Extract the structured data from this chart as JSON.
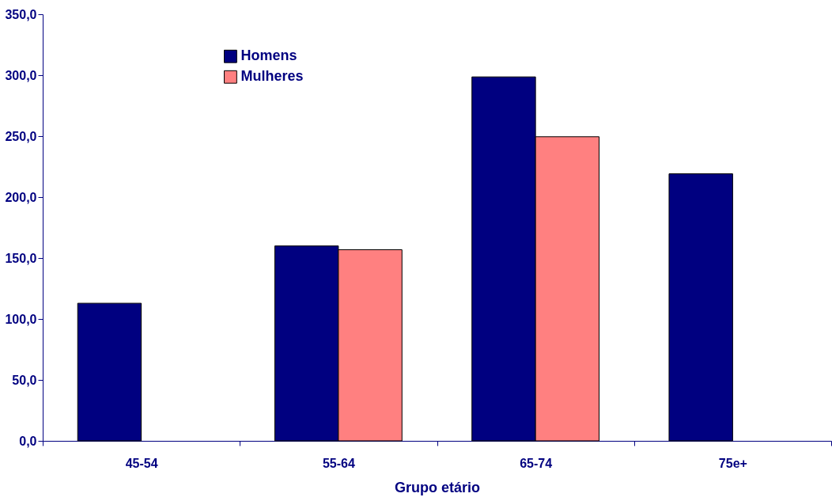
{
  "chart_data": {
    "type": "bar",
    "xlabel": "Grupo etário",
    "categories": [
      "45-54",
      "55-64",
      "65-74",
      "75e+"
    ],
    "series": [
      {
        "name": "Homens",
        "color": "#000080",
        "values": [
          112.9,
          159.9,
          298.6,
          219.1
        ]
      },
      {
        "name": "Mulheres",
        "color": "#ff8080",
        "values": [
          null,
          156.8,
          249.5,
          null
        ]
      }
    ],
    "ylim": [
      0,
      350
    ],
    "yticks": [
      {
        "value": 0,
        "label": "0,0"
      },
      {
        "value": 50,
        "label": "50,0"
      },
      {
        "value": 100,
        "label": "100,0"
      },
      {
        "value": 150,
        "label": "150,0"
      },
      {
        "value": 200,
        "label": "200,0"
      },
      {
        "value": 250,
        "label": "250,0"
      },
      {
        "value": 300,
        "label": "300,0"
      },
      {
        "value": 350,
        "label": "350,0"
      }
    ],
    "grid": false,
    "legend": "top left"
  }
}
